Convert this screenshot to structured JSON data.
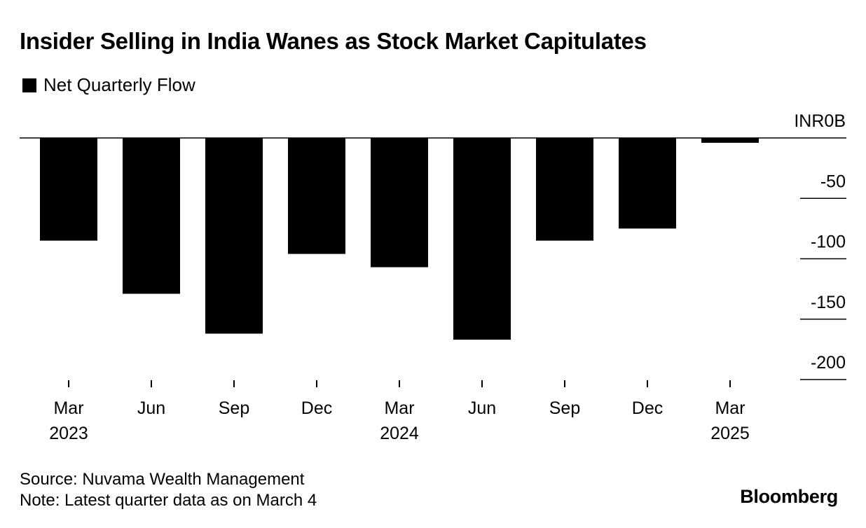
{
  "title": "Insider Selling in India Wanes as Stock Market Capitulates",
  "legend": {
    "label": "Net Quarterly Flow",
    "swatch_color": "#000000"
  },
  "footer": {
    "source": "Source: Nuvama Wealth Management",
    "note": "Note: Latest quarter data as on March 4"
  },
  "brand": "Bloomberg",
  "chart_data": {
    "type": "bar",
    "title": "Insider Selling in India Wanes as Stock Market Capitulates",
    "xlabel": "",
    "ylabel": "",
    "categories": [
      "Mar 2023",
      "Jun",
      "Sep",
      "Dec",
      "Mar 2024",
      "Jun",
      "Sep",
      "Dec",
      "Mar 2025"
    ],
    "x_tick_labels": [
      [
        "Mar",
        "2023"
      ],
      [
        "Jun",
        ""
      ],
      [
        "Sep",
        ""
      ],
      [
        "Dec",
        ""
      ],
      [
        "Mar",
        "2024"
      ],
      [
        "Jun",
        ""
      ],
      [
        "Sep",
        ""
      ],
      [
        "Dec",
        ""
      ],
      [
        "Mar",
        "2025"
      ]
    ],
    "series": [
      {
        "name": "Net Quarterly Flow",
        "color": "#000000",
        "values": [
          -85,
          -129,
          -162,
          -96,
          -107,
          -167,
          -85,
          -75,
          -4
        ]
      }
    ],
    "ylim": [
      -200,
      0
    ],
    "y_ticks": [
      0,
      -50,
      -100,
      -150,
      -200
    ],
    "y_tick_labels": [
      "INR0B",
      "-50",
      "-100",
      "-150",
      "-200"
    ],
    "y_axis_position": "right",
    "grid": false,
    "legend_position": "top-left"
  }
}
